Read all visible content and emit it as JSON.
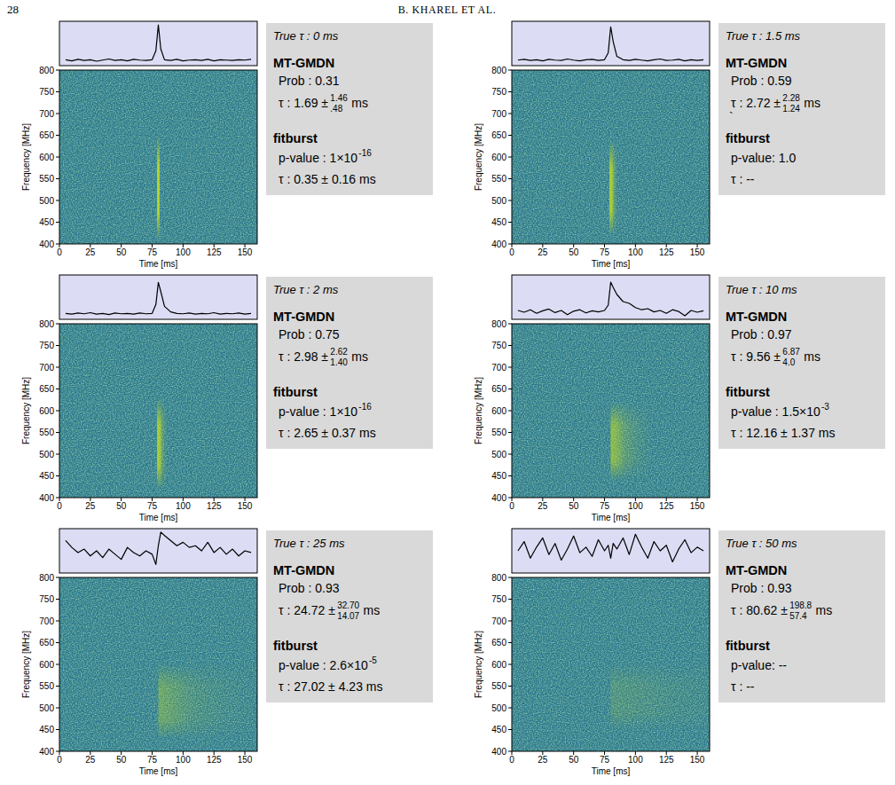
{
  "header": {
    "page": "28",
    "running_head": "B. KHAREL ET AL."
  },
  "chart_data": [
    {
      "type": "heatmap",
      "xlabel": "Time [ms]",
      "ylabel": "Frequency [MHz]",
      "xlim": [
        0,
        160
      ],
      "xticks": [
        0,
        25,
        50,
        75,
        100,
        125,
        150
      ],
      "ylim": [
        400,
        800
      ],
      "yticks": [
        400,
        450,
        500,
        550,
        600,
        650,
        700,
        750,
        800
      ],
      "true_tau": {
        "label": "True τ :",
        "value": 0,
        "unit": "ms"
      },
      "burst": {
        "time": 80,
        "width": 2,
        "freq_range": [
          410,
          650
        ],
        "amplitude": 0.9
      },
      "profile": {
        "ylim": [
          -0.1,
          1.1
        ],
        "x": [
          5,
          10,
          15,
          20,
          25,
          30,
          35,
          40,
          45,
          50,
          55,
          60,
          65,
          70,
          75,
          78,
          80,
          82,
          85,
          90,
          95,
          100,
          105,
          110,
          115,
          120,
          125,
          130,
          135,
          140,
          145,
          150,
          155
        ],
        "values": [
          0.06,
          0.03,
          0.07,
          0.04,
          0.06,
          0.02,
          0.05,
          0.08,
          0.04,
          0.06,
          0.03,
          0.07,
          0.05,
          0.04,
          0.06,
          0.3,
          1.0,
          0.35,
          0.06,
          0.04,
          0.07,
          0.03,
          0.05,
          0.06,
          0.04,
          0.07,
          0.03,
          0.06,
          0.05,
          0.04,
          0.06,
          0.05,
          0.07
        ]
      },
      "mtgmdn": {
        "title": "MT-GMDN",
        "prob_label": "Prob :",
        "prob": "0.31",
        "tau_label": "τ :",
        "tau": "1.69 ±",
        "tau_plus": "1.46",
        "tau_minus": ".48",
        "tau_unit": "ms"
      },
      "fitburst": {
        "title": "fitburst",
        "pvalue_label": "p-value :",
        "pvalue": "1×10",
        "pvalue_exp": "-16",
        "tau_text": "τ : 0.35 ± 0.16 ms"
      }
    },
    {
      "type": "heatmap",
      "xlabel": "Time [ms]",
      "ylabel": "Frequency [MHz]",
      "xlim": [
        0,
        160
      ],
      "xticks": [
        0,
        25,
        50,
        75,
        100,
        125,
        150
      ],
      "ylim": [
        400,
        800
      ],
      "yticks": [
        400,
        450,
        500,
        550,
        600,
        650,
        700,
        750,
        800
      ],
      "true_tau": {
        "label": "True τ :",
        "value": 1.5,
        "unit": "ms"
      },
      "burst": {
        "time": 80,
        "width": 2,
        "freq_range": [
          420,
          640
        ],
        "amplitude": 0.8
      },
      "profile": {
        "ylim": [
          -0.1,
          1.1
        ],
        "x": [
          5,
          10,
          15,
          20,
          25,
          30,
          35,
          40,
          45,
          50,
          55,
          60,
          65,
          70,
          75,
          78,
          80,
          82,
          85,
          90,
          95,
          100,
          105,
          110,
          115,
          120,
          125,
          130,
          135,
          140,
          145,
          150,
          155
        ],
        "values": [
          0.05,
          0.07,
          0.04,
          0.06,
          0.03,
          0.07,
          0.05,
          0.04,
          0.08,
          0.05,
          0.03,
          0.06,
          0.07,
          0.04,
          0.06,
          0.25,
          0.95,
          0.55,
          0.15,
          0.06,
          0.04,
          0.07,
          0.05,
          0.03,
          0.06,
          0.08,
          0.04,
          0.05,
          0.07,
          0.03,
          0.06,
          0.04,
          0.06
        ]
      },
      "mtgmdn": {
        "title": "MT-GMDN",
        "prob_label": "Prob :",
        "prob": "0.59",
        "tau_label": "τ :",
        "tau": "2.72 ±",
        "tau_plus": "2.28",
        "tau_minus": "1.24",
        "tau_unit": "ms",
        "stray_mark": "`"
      },
      "fitburst": {
        "title": "fitburst",
        "pvalue_label": "p-value:",
        "pvalue": "1.0",
        "tau_text": "τ : --"
      }
    },
    {
      "type": "heatmap",
      "xlabel": "Time [ms]",
      "ylabel": "Frequency [MHz]",
      "xlim": [
        0,
        160
      ],
      "xticks": [
        0,
        25,
        50,
        75,
        100,
        125,
        150
      ],
      "ylim": [
        400,
        800
      ],
      "yticks": [
        400,
        450,
        500,
        550,
        600,
        650,
        700,
        750,
        800
      ],
      "true_tau": {
        "label": "True τ :",
        "value": 2,
        "unit": "ms"
      },
      "burst": {
        "time": 80,
        "width": 2,
        "freq_range": [
          420,
          630
        ],
        "amplitude": 0.8
      },
      "profile": {
        "ylim": [
          -0.1,
          1.1
        ],
        "x": [
          5,
          10,
          15,
          20,
          25,
          30,
          35,
          40,
          45,
          50,
          55,
          60,
          65,
          70,
          75,
          78,
          80,
          82,
          85,
          90,
          95,
          100,
          105,
          110,
          115,
          120,
          125,
          130,
          135,
          140,
          145,
          150,
          155
        ],
        "values": [
          0.06,
          0.04,
          0.07,
          0.05,
          0.08,
          0.04,
          0.06,
          0.03,
          0.07,
          0.05,
          0.06,
          0.04,
          0.07,
          0.05,
          0.06,
          0.3,
          0.9,
          0.65,
          0.25,
          0.1,
          0.06,
          0.05,
          0.07,
          0.04,
          0.06,
          0.05,
          0.08,
          0.04,
          0.06,
          0.05,
          0.07,
          0.04,
          0.06
        ]
      },
      "mtgmdn": {
        "title": "MT-GMDN",
        "prob_label": "Prob :",
        "prob": "0.75",
        "tau_label": "τ :",
        "tau": "2.98 ±",
        "tau_plus": "2.62",
        "tau_minus": "1.40",
        "tau_unit": "ms"
      },
      "fitburst": {
        "title": "fitburst",
        "pvalue_label": "p-value :",
        "pvalue": "1×10",
        "pvalue_exp": "-16",
        "tau_text": "τ : 2.65 ± 0.37 ms"
      }
    },
    {
      "type": "heatmap",
      "xlabel": "Time [ms]",
      "ylabel": "Frequency [MHz]",
      "xlim": [
        0,
        160
      ],
      "xticks": [
        0,
        25,
        50,
        75,
        100,
        125,
        150
      ],
      "ylim": [
        400,
        800
      ],
      "yticks": [
        400,
        450,
        500,
        550,
        600,
        650,
        700,
        750,
        800
      ],
      "true_tau": {
        "label": "True τ :",
        "value": 10,
        "unit": "ms"
      },
      "burst": {
        "time": 81,
        "width": 2,
        "freq_range": [
          440,
          620
        ],
        "amplitude": 0.6
      },
      "profile": {
        "ylim": [
          -0.15,
          1.1
        ],
        "x": [
          5,
          10,
          15,
          20,
          25,
          30,
          35,
          40,
          45,
          50,
          55,
          60,
          65,
          70,
          75,
          78,
          80,
          82,
          85,
          90,
          95,
          100,
          105,
          110,
          115,
          120,
          125,
          130,
          135,
          140,
          145,
          150,
          155
        ],
        "values": [
          0.1,
          0.05,
          0.12,
          0.02,
          0.09,
          0.14,
          0.04,
          0.1,
          -0.02,
          0.08,
          0.12,
          0.03,
          0.09,
          0.06,
          0.1,
          0.25,
          0.9,
          0.75,
          0.55,
          0.35,
          0.3,
          0.18,
          0.12,
          0.15,
          0.06,
          0.1,
          0.02,
          0.12,
          0.07,
          -0.05,
          0.1,
          0.05,
          0.09
        ]
      },
      "mtgmdn": {
        "title": "MT-GMDN",
        "prob_label": "Prob :",
        "prob": "0.97",
        "tau_label": "τ :",
        "tau": "9.56 ±",
        "tau_plus": "6.87",
        "tau_minus": "4.0",
        "tau_unit": "ms"
      },
      "fitburst": {
        "title": "fitburst",
        "pvalue_label": "p-value :",
        "pvalue": "1.5×10",
        "pvalue_exp": "-3",
        "tau_text": "τ : 12.16 ± 1.37 ms"
      }
    },
    {
      "type": "heatmap",
      "xlabel": "Time [ms]",
      "ylabel": "Frequency [MHz]",
      "xlim": [
        0,
        160
      ],
      "xticks": [
        0,
        25,
        50,
        75,
        100,
        125,
        150
      ],
      "ylim": [
        400,
        800
      ],
      "yticks": [
        400,
        450,
        500,
        550,
        600,
        650,
        700,
        750,
        800
      ],
      "true_tau": {
        "label": "True τ :",
        "value": 25,
        "unit": "ms"
      },
      "burst": {
        "time": 81,
        "width": 2,
        "freq_range": [
          430,
          600
        ],
        "amplitude": 0.35
      },
      "profile": {
        "ylim": [
          -0.2,
          1.1
        ],
        "x": [
          5,
          10,
          15,
          20,
          25,
          30,
          35,
          40,
          45,
          50,
          55,
          60,
          65,
          70,
          75,
          78,
          80,
          82,
          85,
          90,
          95,
          100,
          105,
          110,
          115,
          120,
          125,
          130,
          135,
          140,
          145,
          150,
          155
        ],
        "values": [
          0.75,
          0.55,
          0.4,
          0.5,
          0.3,
          0.45,
          0.25,
          0.5,
          0.35,
          0.2,
          0.55,
          0.4,
          0.3,
          0.45,
          0.35,
          0.05,
          0.6,
          1.0,
          0.9,
          0.75,
          0.6,
          0.7,
          0.55,
          0.6,
          0.45,
          0.7,
          0.4,
          0.55,
          0.35,
          0.5,
          0.3,
          0.45,
          0.4
        ]
      },
      "mtgmdn": {
        "title": "MT-GMDN",
        "prob_label": "Prob :",
        "prob": "0.93",
        "tau_label": "τ :",
        "tau": "24.72 ±",
        "tau_plus": "32.70",
        "tau_minus": "14.07",
        "tau_unit": "ms"
      },
      "fitburst": {
        "title": "fitburst",
        "pvalue_label": "p-value :",
        "pvalue": "2.6×10",
        "pvalue_exp": "-5",
        "tau_text": "τ : 27.02 ± 4.23 ms"
      }
    },
    {
      "type": "heatmap",
      "xlabel": "Time [ms]",
      "ylabel": "Frequency [MHz]",
      "xlim": [
        0,
        160
      ],
      "xticks": [
        0,
        25,
        50,
        75,
        100,
        125,
        150
      ],
      "ylim": [
        400,
        800
      ],
      "yticks": [
        400,
        450,
        500,
        550,
        600,
        650,
        700,
        750,
        800
      ],
      "true_tau": {
        "label": "True τ :",
        "value": 50,
        "unit": "ms"
      },
      "burst": {
        "time": 81,
        "width": 2,
        "freq_range": [
          450,
          600
        ],
        "amplitude": 0.15
      },
      "profile": {
        "ylim": [
          -0.1,
          1.1
        ],
        "x": [
          5,
          10,
          15,
          20,
          25,
          30,
          35,
          40,
          45,
          50,
          55,
          60,
          65,
          70,
          75,
          78,
          80,
          82,
          85,
          90,
          95,
          100,
          105,
          110,
          115,
          120,
          125,
          130,
          135,
          140,
          145,
          150,
          155
        ],
        "values": [
          0.5,
          0.75,
          0.3,
          0.6,
          0.85,
          0.4,
          0.7,
          0.25,
          0.55,
          0.9,
          0.45,
          0.6,
          0.35,
          0.8,
          0.5,
          0.65,
          0.3,
          0.7,
          0.55,
          0.85,
          0.4,
          0.95,
          0.6,
          0.3,
          0.75,
          0.5,
          0.65,
          0.2,
          0.55,
          0.8,
          0.45,
          0.6,
          0.5
        ]
      },
      "mtgmdn": {
        "title": "MT-GMDN",
        "prob_label": "Prob :",
        "prob": "0.93",
        "tau_label": "τ :",
        "tau": "80.62 ±",
        "tau_plus": "198.8",
        "tau_minus": "57.4",
        "tau_unit": "ms"
      },
      "fitburst": {
        "title": "fitburst",
        "pvalue_label": "p-value:",
        "pvalue": "--",
        "tau_text": "τ : --"
      }
    }
  ]
}
